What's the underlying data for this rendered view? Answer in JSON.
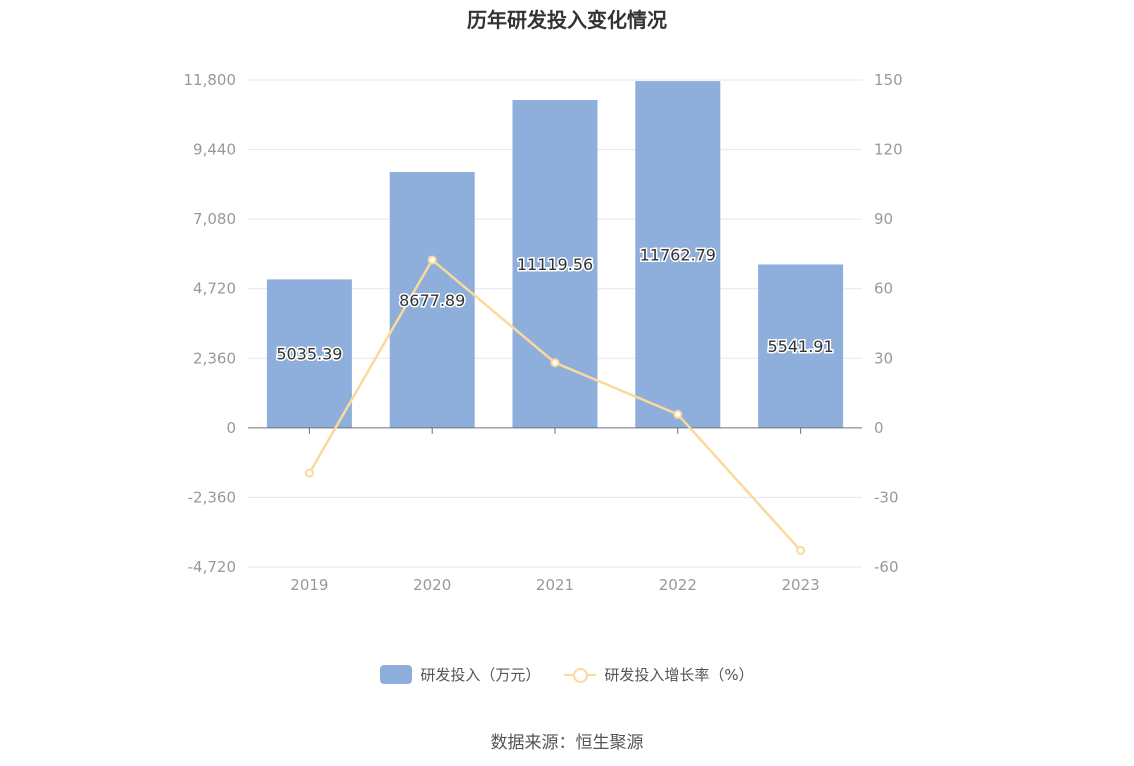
{
  "chart_data": {
    "type": "bar",
    "title": "历年研发投入变化情况",
    "categories": [
      "2019",
      "2020",
      "2021",
      "2022",
      "2023"
    ],
    "series": [
      {
        "name": "研发投入（万元）",
        "type": "bar",
        "axis": "left",
        "values": [
          5035.39,
          8677.89,
          11119.56,
          11762.79,
          5541.91
        ],
        "labels": [
          "5035.39",
          "8677.89",
          "11119.56",
          "11762.79",
          "5541.91"
        ]
      },
      {
        "name": "研发投入增长率（%）",
        "type": "line",
        "axis": "right",
        "values": [
          -19.5,
          72.4,
          28.1,
          5.8,
          -52.9
        ]
      }
    ],
    "y_left": {
      "ylim": [
        -4720,
        11800
      ],
      "ticks": [
        11800,
        9440,
        7080,
        4720,
        2360,
        0,
        -2360,
        -4720
      ],
      "tick_labels": [
        "11,800",
        "9,440",
        "7,080",
        "4,720",
        "2,360",
        "0",
        "-2,360",
        "-4,720"
      ]
    },
    "y_right": {
      "ylim": [
        -60,
        150
      ],
      "ticks": [
        150,
        120,
        90,
        60,
        30,
        0,
        -30,
        -60
      ],
      "tick_labels": [
        "150",
        "120",
        "90",
        "60",
        "30",
        "0",
        "-30",
        "-60"
      ]
    },
    "legend_position": "bottom-center",
    "grid": true,
    "colors": {
      "bar": "#8eaedb",
      "line": "#fbd99c",
      "grid": "#e3e7f2",
      "axis": "#6e7079",
      "tick_text": "#999999"
    }
  },
  "source": "数据来源：恒生聚源"
}
